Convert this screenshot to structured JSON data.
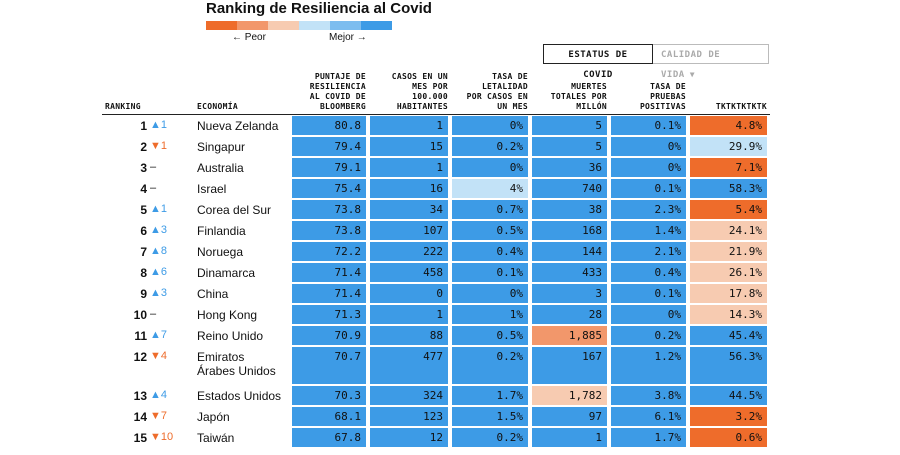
{
  "title": "Ranking de Resiliencia al Covid",
  "legend": {
    "worse_label": "← Peor",
    "better_label": "Mejor →",
    "scale_colors": [
      "#ee6c2b",
      "#f2976b",
      "#f7cbb1",
      "#c2e2f7",
      "#7dbdef",
      "#3d9be6"
    ]
  },
  "tabs": [
    {
      "label": "ESTATUS DE COVID",
      "active": true
    },
    {
      "label": "CALIDAD DE VIDA",
      "active": false,
      "icon": "chevron-down-icon"
    }
  ],
  "columns": {
    "ranking": "RANKING",
    "economy": "ECONOMÍA",
    "score": [
      "PUNTAJE DE",
      "RESILIENCIA",
      "AL COVID DE",
      "BLOOMBERG"
    ],
    "cases": [
      "CASOS EN UN",
      "MES POR",
      "100.000",
      "HABITANTES"
    ],
    "fatality": [
      "TASA DE",
      "LETALIDAD",
      "POR CASOS EN",
      "UN MES"
    ],
    "deaths": [
      "MUERTES",
      "TOTALES POR",
      "MILLÓN"
    ],
    "positivity": [
      "TASA DE",
      "PRUEBAS",
      "POSITIVAS"
    ],
    "extra": [
      "TKTKTKTKTK"
    ]
  },
  "rows": [
    {
      "rank": "1",
      "change": "▲1",
      "dir": "up",
      "name": "Nueva Zelanda",
      "score": "80.8",
      "cases": "1",
      "fatality": "0%",
      "deaths": "5",
      "positivity": "0.1%",
      "extra": "4.8%",
      "c_score": "#3d9be6",
      "c_cases": "#3d9be6",
      "c_fatality": "#3d9be6",
      "c_deaths": "#3d9be6",
      "c_positivity": "#3d9be6",
      "c_extra": "#ee6c2b"
    },
    {
      "rank": "2",
      "change": "▼1",
      "dir": "down",
      "name": "Singapur",
      "score": "79.4",
      "cases": "15",
      "fatality": "0.2%",
      "deaths": "5",
      "positivity": "0%",
      "extra": "29.9%",
      "c_score": "#3d9be6",
      "c_cases": "#3d9be6",
      "c_fatality": "#3d9be6",
      "c_deaths": "#3d9be6",
      "c_positivity": "#3d9be6",
      "c_extra": "#c2e2f7"
    },
    {
      "rank": "3",
      "change": "–",
      "dir": "same",
      "name": "Australia",
      "score": "79.1",
      "cases": "1",
      "fatality": "0%",
      "deaths": "36",
      "positivity": "0%",
      "extra": "7.1%",
      "c_score": "#3d9be6",
      "c_cases": "#3d9be6",
      "c_fatality": "#3d9be6",
      "c_deaths": "#3d9be6",
      "c_positivity": "#3d9be6",
      "c_extra": "#ee6c2b"
    },
    {
      "rank": "4",
      "change": "–",
      "dir": "same",
      "name": "Israel",
      "score": "75.4",
      "cases": "16",
      "fatality": "4%",
      "deaths": "740",
      "positivity": "0.1%",
      "extra": "58.3%",
      "c_score": "#3d9be6",
      "c_cases": "#3d9be6",
      "c_fatality": "#c2e2f7",
      "c_deaths": "#3d9be6",
      "c_positivity": "#3d9be6",
      "c_extra": "#3d9be6"
    },
    {
      "rank": "5",
      "change": "▲1",
      "dir": "up",
      "name": "Corea del Sur",
      "score": "73.8",
      "cases": "34",
      "fatality": "0.7%",
      "deaths": "38",
      "positivity": "2.3%",
      "extra": "5.4%",
      "c_score": "#3d9be6",
      "c_cases": "#3d9be6",
      "c_fatality": "#3d9be6",
      "c_deaths": "#3d9be6",
      "c_positivity": "#3d9be6",
      "c_extra": "#ee6c2b"
    },
    {
      "rank": "6",
      "change": "▲3",
      "dir": "up",
      "name": "Finlandia",
      "score": "73.8",
      "cases": "107",
      "fatality": "0.5%",
      "deaths": "168",
      "positivity": "1.4%",
      "extra": "24.1%",
      "c_score": "#3d9be6",
      "c_cases": "#3d9be6",
      "c_fatality": "#3d9be6",
      "c_deaths": "#3d9be6",
      "c_positivity": "#3d9be6",
      "c_extra": "#f7cbb1"
    },
    {
      "rank": "7",
      "change": "▲8",
      "dir": "up",
      "name": "Noruega",
      "score": "72.2",
      "cases": "222",
      "fatality": "0.4%",
      "deaths": "144",
      "positivity": "2.1%",
      "extra": "21.9%",
      "c_score": "#3d9be6",
      "c_cases": "#3d9be6",
      "c_fatality": "#3d9be6",
      "c_deaths": "#3d9be6",
      "c_positivity": "#3d9be6",
      "c_extra": "#f7cbb1"
    },
    {
      "rank": "8",
      "change": "▲6",
      "dir": "up",
      "name": "Dinamarca",
      "score": "71.4",
      "cases": "458",
      "fatality": "0.1%",
      "deaths": "433",
      "positivity": "0.4%",
      "extra": "26.1%",
      "c_score": "#3d9be6",
      "c_cases": "#3d9be6",
      "c_fatality": "#3d9be6",
      "c_deaths": "#3d9be6",
      "c_positivity": "#3d9be6",
      "c_extra": "#f7cbb1"
    },
    {
      "rank": "9",
      "change": "▲3",
      "dir": "up",
      "name": "China",
      "score": "71.4",
      "cases": "0",
      "fatality": "0%",
      "deaths": "3",
      "positivity": "0.1%",
      "extra": "17.8%",
      "c_score": "#3d9be6",
      "c_cases": "#3d9be6",
      "c_fatality": "#3d9be6",
      "c_deaths": "#3d9be6",
      "c_positivity": "#3d9be6",
      "c_extra": "#f7cbb1"
    },
    {
      "rank": "10",
      "change": "–",
      "dir": "same",
      "name": "Hong Kong",
      "score": "71.3",
      "cases": "1",
      "fatality": "1%",
      "deaths": "28",
      "positivity": "0%",
      "extra": "14.3%",
      "c_score": "#3d9be6",
      "c_cases": "#3d9be6",
      "c_fatality": "#3d9be6",
      "c_deaths": "#3d9be6",
      "c_positivity": "#3d9be6",
      "c_extra": "#f7cbb1"
    },
    {
      "rank": "11",
      "change": "▲7",
      "dir": "up",
      "name": "Reino Unido",
      "score": "70.9",
      "cases": "88",
      "fatality": "0.5%",
      "deaths": "1,885",
      "positivity": "0.2%",
      "extra": "45.4%",
      "c_score": "#3d9be6",
      "c_cases": "#3d9be6",
      "c_fatality": "#3d9be6",
      "c_deaths": "#f2976b",
      "c_positivity": "#3d9be6",
      "c_extra": "#3d9be6"
    },
    {
      "rank": "12",
      "change": "▼4",
      "dir": "down",
      "name": "Emiratos\nÁrabes Unidos",
      "score": "70.7",
      "cases": "477",
      "fatality": "0.2%",
      "deaths": "167",
      "positivity": "1.2%",
      "extra": "56.3%",
      "c_score": "#3d9be6",
      "c_cases": "#3d9be6",
      "c_fatality": "#3d9be6",
      "c_deaths": "#3d9be6",
      "c_positivity": "#3d9be6",
      "c_extra": "#3d9be6"
    },
    {
      "rank": "13",
      "change": "▲4",
      "dir": "up",
      "name": "Estados Unidos",
      "score": "70.3",
      "cases": "324",
      "fatality": "1.7%",
      "deaths": "1,782",
      "positivity": "3.8%",
      "extra": "44.5%",
      "c_score": "#3d9be6",
      "c_cases": "#3d9be6",
      "c_fatality": "#3d9be6",
      "c_deaths": "#f7cbb1",
      "c_positivity": "#3d9be6",
      "c_extra": "#3d9be6"
    },
    {
      "rank": "14",
      "change": "▼7",
      "dir": "down",
      "name": "Japón",
      "score": "68.1",
      "cases": "123",
      "fatality": "1.5%",
      "deaths": "97",
      "positivity": "6.1%",
      "extra": "3.2%",
      "c_score": "#3d9be6",
      "c_cases": "#3d9be6",
      "c_fatality": "#3d9be6",
      "c_deaths": "#3d9be6",
      "c_positivity": "#3d9be6",
      "c_extra": "#ee6c2b"
    },
    {
      "rank": "15",
      "change": "▼10",
      "dir": "down",
      "name": "Taiwán",
      "score": "67.8",
      "cases": "12",
      "fatality": "0.2%",
      "deaths": "1",
      "positivity": "1.7%",
      "extra": "0.6%",
      "c_score": "#3d9be6",
      "c_cases": "#3d9be6",
      "c_fatality": "#3d9be6",
      "c_deaths": "#3d9be6",
      "c_positivity": "#3d9be6",
      "c_extra": "#ee6c2b"
    }
  ]
}
